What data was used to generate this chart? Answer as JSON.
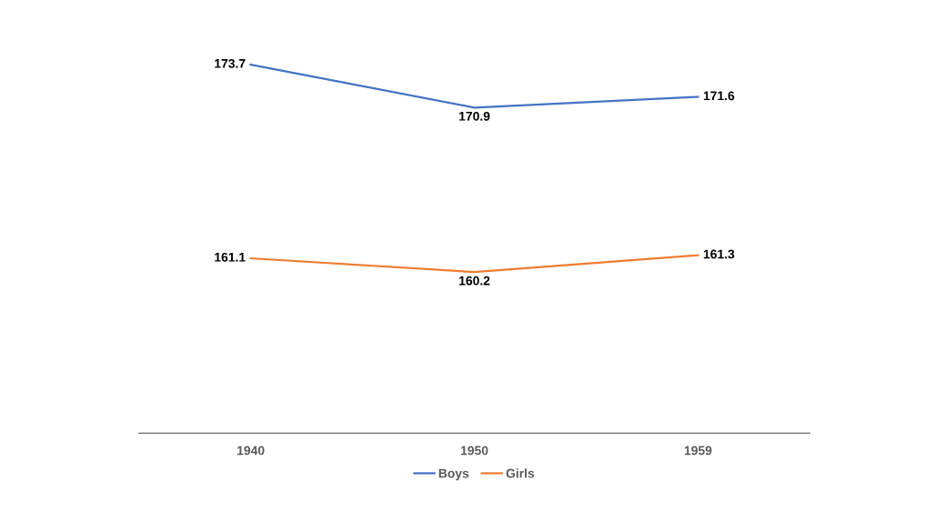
{
  "chart_data": {
    "type": "line",
    "categories": [
      "1940",
      "1950",
      "1959"
    ],
    "series": [
      {
        "name": "Boys",
        "color": "#4472c4",
        "values": [
          173.7,
          170.9,
          171.6
        ]
      },
      {
        "name": "Girls",
        "color": "#ed7d31",
        "values": [
          161.1,
          160.2,
          161.3
        ]
      }
    ],
    "data_labels": true,
    "legend": "bottom",
    "grid": false,
    "tick_labels": "x",
    "marker": "none",
    "line_style": "solid"
  }
}
